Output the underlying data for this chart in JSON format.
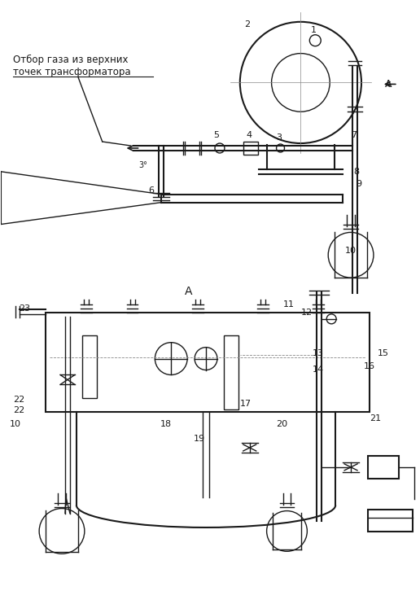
{
  "bg_color": "#ffffff",
  "line_color": "#1a1a1a",
  "annotation_text": "Отбор газа из верхних\nточек трансформатора",
  "angle_label": "3°",
  "fig_width": 5.16,
  "fig_height": 7.26,
  "dpi": 100
}
